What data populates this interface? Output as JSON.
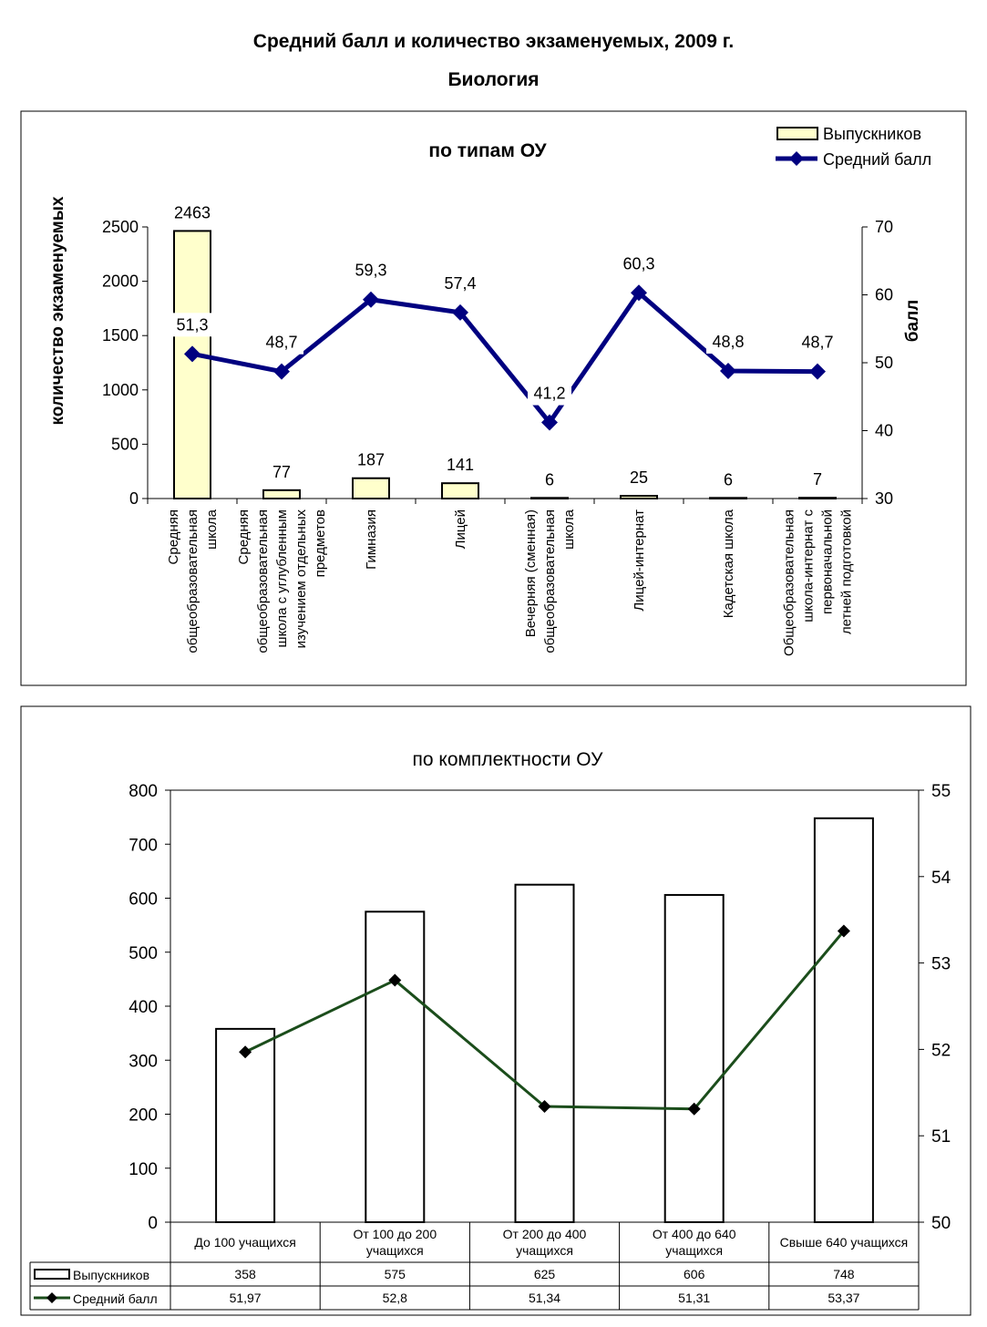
{
  "page": {
    "title": "Средний балл и количество экзаменуемых, 2009 г.",
    "subtitle": "Биология"
  },
  "colors": {
    "bar1_fill": "#FFFFCC",
    "line1": "#000080",
    "bar2_fill": "#FFFFFF",
    "line2": "#1B4D1B"
  },
  "chart_data": [
    {
      "type": "bar",
      "title": "по типам ОУ",
      "ylabel": "количество экзаменуемых",
      "y2label": "балл",
      "ylim": [
        0,
        2500
      ],
      "yticks": [
        0,
        500,
        1000,
        1500,
        2000,
        2500
      ],
      "y2lim": [
        30,
        70
      ],
      "y2ticks": [
        30,
        40,
        50,
        60,
        70
      ],
      "legend_position": "top-right",
      "categories": [
        [
          "Средняя",
          "общеобразовательная",
          "школа"
        ],
        [
          "Средняя",
          "общеобразовательная",
          "школа с углубленным",
          "изучением отдельных",
          "предметов"
        ],
        [
          "Гимназия"
        ],
        [
          "Лицей"
        ],
        [
          "Вечерняя (сменная)",
          "общеобразовательная",
          "школа"
        ],
        [
          "Лицей-интернат"
        ],
        [
          "Кадетская школа"
        ],
        [
          "Общеобразовательная",
          "школа-интернат с",
          "первоначальной",
          "летней подготовкой"
        ]
      ],
      "series": [
        {
          "name": "Выпускников",
          "kind": "bar",
          "values": [
            2463,
            77,
            187,
            141,
            6,
            25,
            6,
            7
          ],
          "labels": [
            "2463",
            "77",
            "187",
            "141",
            "6",
            "25",
            "6",
            "7"
          ]
        },
        {
          "name": "Средний балл",
          "kind": "line",
          "axis": "right",
          "values": [
            51.3,
            48.7,
            59.3,
            57.4,
            41.2,
            60.3,
            48.8,
            48.7
          ],
          "labels": [
            "51,3",
            "48,7",
            "59,3",
            "57,4",
            "41,2",
            "60,3",
            "48,8",
            "48,7"
          ]
        }
      ]
    },
    {
      "type": "bar",
      "title": "по комплектности ОУ",
      "ylim": [
        0,
        800
      ],
      "yticks": [
        0,
        100,
        200,
        300,
        400,
        500,
        600,
        700,
        800
      ],
      "y2lim": [
        50,
        55
      ],
      "y2ticks": [
        50,
        51,
        52,
        53,
        54,
        55
      ],
      "legend_position": "data-table",
      "categories": [
        [
          "До 100 учащихся"
        ],
        [
          "От 100 до 200",
          "учащихся"
        ],
        [
          "От 200 до 400",
          "учащихся"
        ],
        [
          "От 400 до 640",
          "учащихся"
        ],
        [
          "Свыше 640 учащихся"
        ]
      ],
      "series": [
        {
          "name": "Выпускников",
          "kind": "bar",
          "values": [
            358,
            575,
            625,
            606,
            748
          ],
          "labels": [
            "358",
            "575",
            "625",
            "606",
            "748"
          ]
        },
        {
          "name": "Средний балл",
          "kind": "line",
          "axis": "right",
          "values": [
            51.97,
            52.8,
            51.34,
            51.31,
            53.37
          ],
          "labels": [
            "51,97",
            "52,8",
            "51,34",
            "51,31",
            "53,37"
          ]
        }
      ]
    }
  ]
}
